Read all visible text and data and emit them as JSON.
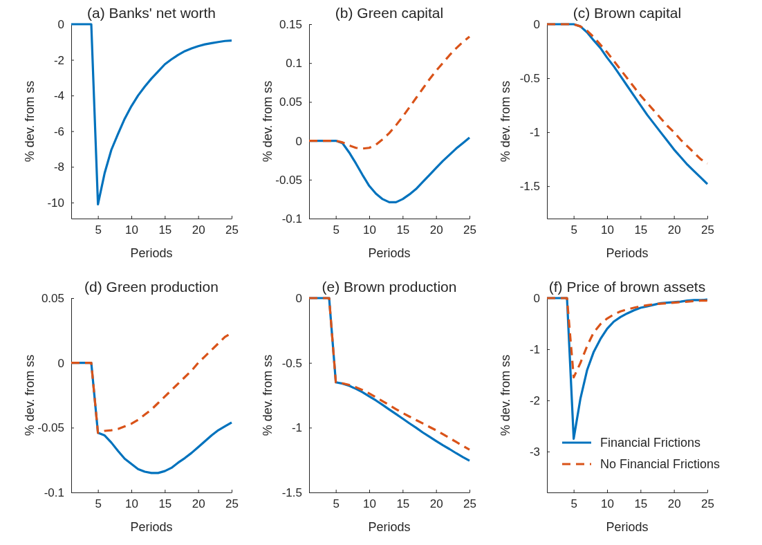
{
  "chart_data": [
    {
      "type": "line",
      "title": "(a) Banks' net worth",
      "xlabel": "Periods",
      "ylabel": "% dev. from ss",
      "x": [
        1,
        2,
        3,
        4,
        5,
        6,
        7,
        8,
        9,
        10,
        11,
        12,
        13,
        14,
        15,
        16,
        17,
        18,
        19,
        20,
        21,
        22,
        23,
        24,
        25
      ],
      "xlim": [
        1,
        25
      ],
      "xticks": [
        5,
        10,
        15,
        20,
        25
      ],
      "ylim": [
        -10.9,
        0
      ],
      "yticks": [
        -10,
        -8,
        -6,
        -4,
        -2,
        0
      ],
      "series": [
        {
          "color": "#0072bd",
          "line_style": "solid",
          "values": [
            0,
            0,
            0,
            0,
            -10.1,
            -8.35,
            -7.05,
            -6.15,
            -5.3,
            -4.6,
            -4.0,
            -3.5,
            -3.05,
            -2.65,
            -2.25,
            -1.97,
            -1.72,
            -1.51,
            -1.36,
            -1.23,
            -1.13,
            -1.06,
            -1.0,
            -0.94,
            -0.92
          ]
        }
      ]
    },
    {
      "type": "line",
      "title": "(b) Green capital",
      "xlabel": "Periods",
      "ylabel": "% dev. from ss",
      "x": [
        1,
        2,
        3,
        4,
        5,
        6,
        7,
        8,
        9,
        10,
        11,
        12,
        13,
        14,
        15,
        16,
        17,
        18,
        19,
        20,
        21,
        22,
        23,
        24,
        25
      ],
      "xlim": [
        1,
        25
      ],
      "xticks": [
        5,
        10,
        15,
        20,
        25
      ],
      "ylim": [
        -0.1,
        0.15
      ],
      "yticks": [
        -0.1,
        -0.05,
        0,
        0.05,
        0.1,
        0.15
      ],
      "series": [
        {
          "color": "#0072bd",
          "line_style": "solid",
          "values": [
            0,
            0,
            0,
            0,
            0,
            -0.003,
            -0.015,
            -0.029,
            -0.044,
            -0.058,
            -0.068,
            -0.075,
            -0.079,
            -0.079,
            -0.075,
            -0.069,
            -0.062,
            -0.053,
            -0.044,
            -0.035,
            -0.026,
            -0.018,
            -0.01,
            -0.003,
            0.004
          ]
        },
        {
          "color": "#d95319",
          "line_style": "dashed",
          "values": [
            0,
            0,
            0,
            0,
            0,
            -0.002,
            -0.006,
            -0.009,
            -0.01,
            -0.009,
            -0.005,
            0.002,
            0.01,
            0.02,
            0.031,
            0.043,
            0.055,
            0.067,
            0.079,
            0.09,
            0.1,
            0.11,
            0.119,
            0.127,
            0.134
          ]
        }
      ]
    },
    {
      "type": "line",
      "title": "(c) Brown capital",
      "xlabel": "Periods",
      "ylabel": "% dev. from ss",
      "x": [
        1,
        2,
        3,
        4,
        5,
        6,
        7,
        8,
        9,
        10,
        11,
        12,
        13,
        14,
        15,
        16,
        17,
        18,
        19,
        20,
        21,
        22,
        23,
        24,
        25
      ],
      "xlim": [
        1,
        25
      ],
      "xticks": [
        5,
        10,
        15,
        20,
        25
      ],
      "ylim": [
        -1.8,
        0
      ],
      "yticks": [
        -1.5,
        -1,
        -0.5,
        0
      ],
      "series": [
        {
          "color": "#0072bd",
          "line_style": "solid",
          "values": [
            0,
            0,
            0,
            0,
            0,
            -0.02,
            -0.075,
            -0.15,
            -0.22,
            -0.31,
            -0.39,
            -0.48,
            -0.57,
            -0.66,
            -0.75,
            -0.84,
            -0.92,
            -1.0,
            -1.08,
            -1.16,
            -1.23,
            -1.3,
            -1.36,
            -1.42,
            -1.48
          ]
        },
        {
          "color": "#d95319",
          "line_style": "dashed",
          "values": [
            0,
            0,
            0,
            0,
            0,
            -0.02,
            -0.06,
            -0.12,
            -0.19,
            -0.26,
            -0.34,
            -0.42,
            -0.5,
            -0.58,
            -0.66,
            -0.73,
            -0.8,
            -0.87,
            -0.94,
            -1.0,
            -1.07,
            -1.13,
            -1.19,
            -1.25,
            -1.29
          ]
        }
      ]
    },
    {
      "type": "line",
      "title": "(d) Green production",
      "xlabel": "Periods",
      "ylabel": "% dev. from ss",
      "x": [
        1,
        2,
        3,
        4,
        5,
        6,
        7,
        8,
        9,
        10,
        11,
        12,
        13,
        14,
        15,
        16,
        17,
        18,
        19,
        20,
        21,
        22,
        23,
        24,
        25
      ],
      "xlim": [
        1,
        25
      ],
      "xticks": [
        5,
        10,
        15,
        20,
        25
      ],
      "ylim": [
        -0.1,
        0.05
      ],
      "yticks": [
        -0.1,
        -0.05,
        0,
        0.05
      ],
      "series": [
        {
          "color": "#0072bd",
          "line_style": "solid",
          "values": [
            0,
            0,
            0,
            0,
            -0.054,
            -0.056,
            -0.0615,
            -0.068,
            -0.074,
            -0.078,
            -0.082,
            -0.084,
            -0.085,
            -0.085,
            -0.0835,
            -0.081,
            -0.077,
            -0.0735,
            -0.0695,
            -0.065,
            -0.0605,
            -0.056,
            -0.052,
            -0.049,
            -0.046
          ]
        },
        {
          "color": "#d95319",
          "line_style": "dashed",
          "values": [
            0,
            0,
            0,
            0,
            -0.054,
            -0.0525,
            -0.052,
            -0.051,
            -0.049,
            -0.047,
            -0.044,
            -0.04,
            -0.036,
            -0.031,
            -0.026,
            -0.021,
            -0.016,
            -0.011,
            -0.006,
            0.0,
            0.005,
            0.01,
            0.015,
            0.02,
            0.023
          ]
        }
      ]
    },
    {
      "type": "line",
      "title": "(e) Brown production",
      "xlabel": "Periods",
      "ylabel": "% dev. from ss",
      "x": [
        1,
        2,
        3,
        4,
        5,
        6,
        7,
        8,
        9,
        10,
        11,
        12,
        13,
        14,
        15,
        16,
        17,
        18,
        19,
        20,
        21,
        22,
        23,
        24,
        25
      ],
      "xlim": [
        1,
        25
      ],
      "xticks": [
        5,
        10,
        15,
        20,
        25
      ],
      "ylim": [
        -1.5,
        0
      ],
      "yticks": [
        -1.5,
        -1,
        -0.5,
        0
      ],
      "series": [
        {
          "color": "#0072bd",
          "line_style": "solid",
          "values": [
            0,
            0,
            0,
            0,
            -0.65,
            -0.66,
            -0.677,
            -0.7,
            -0.727,
            -0.759,
            -0.79,
            -0.824,
            -0.86,
            -0.895,
            -0.93,
            -0.966,
            -1.0,
            -1.037,
            -1.07,
            -1.103,
            -1.135,
            -1.165,
            -1.197,
            -1.227,
            -1.255
          ]
        },
        {
          "color": "#d95319",
          "line_style": "dashed",
          "values": [
            0,
            0,
            0,
            0,
            -0.65,
            -0.658,
            -0.67,
            -0.688,
            -0.71,
            -0.736,
            -0.766,
            -0.796,
            -0.826,
            -0.857,
            -0.887,
            -0.914,
            -0.941,
            -0.967,
            -0.994,
            -1.02,
            -1.05,
            -1.08,
            -1.11,
            -1.14,
            -1.17
          ]
        }
      ]
    },
    {
      "type": "line",
      "title": "(f) Price of brown assets",
      "xlabel": "Periods",
      "ylabel": "% dev. from ss",
      "x": [
        1,
        2,
        3,
        4,
        5,
        6,
        7,
        8,
        9,
        10,
        11,
        12,
        13,
        14,
        15,
        16,
        17,
        18,
        19,
        20,
        21,
        22,
        23,
        24,
        25
      ],
      "xlim": [
        1,
        25
      ],
      "xticks": [
        5,
        10,
        15,
        20,
        25
      ],
      "ylim": [
        -3.8,
        0
      ],
      "yticks": [
        -3,
        -2,
        -1,
        0
      ],
      "legend": "bottom right",
      "series": [
        {
          "name": "Financial Frictions",
          "color": "#0072bd",
          "line_style": "solid",
          "values": [
            0,
            0,
            0,
            0,
            -2.75,
            -1.97,
            -1.41,
            -1.05,
            -0.8,
            -0.6,
            -0.46,
            -0.37,
            -0.3,
            -0.24,
            -0.19,
            -0.16,
            -0.13,
            -0.1,
            -0.09,
            -0.08,
            -0.07,
            -0.05,
            -0.04,
            -0.04,
            -0.03
          ]
        },
        {
          "name": "No Financial Frictions",
          "color": "#d95319",
          "line_style": "dashed",
          "values": [
            0,
            0,
            0,
            0,
            -1.55,
            -1.27,
            -0.94,
            -0.67,
            -0.51,
            -0.4,
            -0.32,
            -0.26,
            -0.22,
            -0.19,
            -0.16,
            -0.14,
            -0.12,
            -0.11,
            -0.1,
            -0.09,
            -0.08,
            -0.07,
            -0.06,
            -0.05,
            -0.05
          ]
        }
      ]
    }
  ]
}
